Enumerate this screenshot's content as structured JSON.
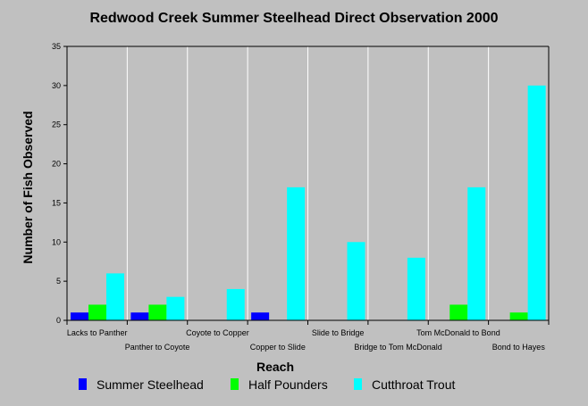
{
  "chart_data": {
    "type": "bar",
    "title": "Redwood Creek Summer Steelhead Direct Observation 2000",
    "xlabel": "Reach",
    "ylabel": "Number of Fish Observed",
    "ylim": [
      0,
      35
    ],
    "yticks": [
      0,
      5,
      10,
      15,
      20,
      25,
      30,
      35
    ],
    "grid": "vertical",
    "legend": "bottom",
    "categories": [
      "Lacks to Panther",
      "Panther to Coyote",
      "Coyote to Copper",
      "Copper to Slide",
      "Slide to Bridge",
      "Bridge to Tom McDonald",
      "Tom McDonald to Bond",
      "Bond to Hayes"
    ],
    "series": [
      {
        "name": "Summer Steelhead",
        "color": "#0000ff",
        "values": [
          1,
          1,
          0,
          1,
          0,
          0,
          0,
          0
        ]
      },
      {
        "name": "Half Pounders",
        "color": "#00ff00",
        "values": [
          2,
          2,
          0,
          0,
          0,
          0,
          2,
          1
        ]
      },
      {
        "name": "Cutthroat Trout",
        "color": "#00ffff",
        "values": [
          6,
          3,
          4,
          17,
          10,
          8,
          17,
          30
        ]
      }
    ]
  }
}
